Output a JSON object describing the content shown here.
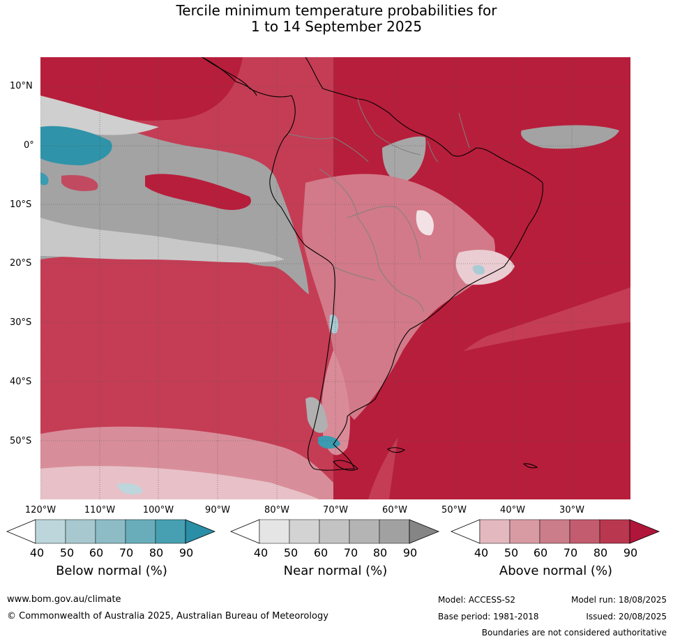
{
  "title": {
    "line1": "Tercile minimum temperature probabilities for",
    "line2": "1 to 14 September 2025"
  },
  "map": {
    "lat_labels": [
      "10°N",
      "0°",
      "10°S",
      "20°S",
      "30°S",
      "40°S",
      "50°S"
    ],
    "lon_labels": [
      "120°W",
      "110°W",
      "100°W",
      "90°W",
      "80°W",
      "70°W",
      "60°W",
      "50°W",
      "40°W",
      "30°W"
    ],
    "colors": {
      "above_fill": "#b91f3a",
      "above_light": "#d57b8a",
      "near_fill": "#a3a3a3",
      "below_fill": "#2a8ea6",
      "land_border": "#000000",
      "country_border": "#808080"
    }
  },
  "colorbars": [
    {
      "name": "Below normal (%)",
      "ticks": [
        "40",
        "50",
        "60",
        "70",
        "80",
        "90"
      ],
      "colors": [
        "#ffffff",
        "#bcd6dc",
        "#a7c8cf",
        "#8dbcc6",
        "#69adbb",
        "#47a0b1",
        "#2a8ea6"
      ]
    },
    {
      "name": "Near normal (%)",
      "ticks": [
        "40",
        "50",
        "60",
        "70",
        "80",
        "90"
      ],
      "colors": [
        "#ffffff",
        "#e5e5e5",
        "#d3d3d3",
        "#c3c3c3",
        "#b4b4b4",
        "#a1a1a1",
        "#858585"
      ]
    },
    {
      "name": "Above normal (%)",
      "ticks": [
        "40",
        "50",
        "60",
        "70",
        "80",
        "90"
      ],
      "colors": [
        "#ffffff",
        "#e3b8be",
        "#d89ba4",
        "#cb7d89",
        "#c25c6e",
        "#b9374f",
        "#b0163a"
      ]
    }
  ],
  "footer": {
    "website": "www.bom.gov.au/climate",
    "copyright": "© Commonwealth of Australia 2025, Australian Bureau of Meteorology",
    "model": "Model: ACCESS-S2",
    "model_run": "Model run: 18/08/2025",
    "base_period": "Base period: 1981-2018",
    "issued": "Issued: 20/08/2025",
    "disclaimer": "Boundaries are not considered authoritative"
  }
}
